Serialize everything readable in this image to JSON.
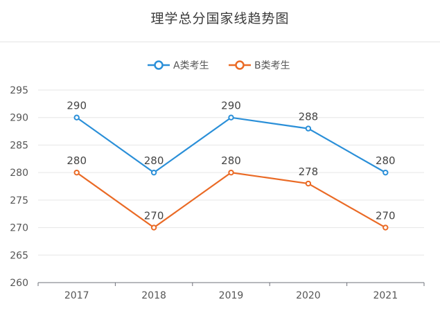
{
  "chart_data": {
    "type": "line",
    "title": "理学总分国家线趋势图",
    "categories": [
      "2017",
      "2018",
      "2019",
      "2020",
      "2021"
    ],
    "series": [
      {
        "name": "A类考生",
        "values": [
          290,
          280,
          290,
          288,
          280
        ],
        "color": "#2a8fd8"
      },
      {
        "name": "B类考生",
        "values": [
          280,
          270,
          280,
          278,
          270
        ],
        "color": "#ea6a25"
      }
    ],
    "yticks": [
      "260",
      "265",
      "270",
      "275",
      "280",
      "285",
      "290",
      "295"
    ],
    "ylim": [
      260,
      295
    ],
    "grid": true,
    "legend_position": "top-center"
  }
}
